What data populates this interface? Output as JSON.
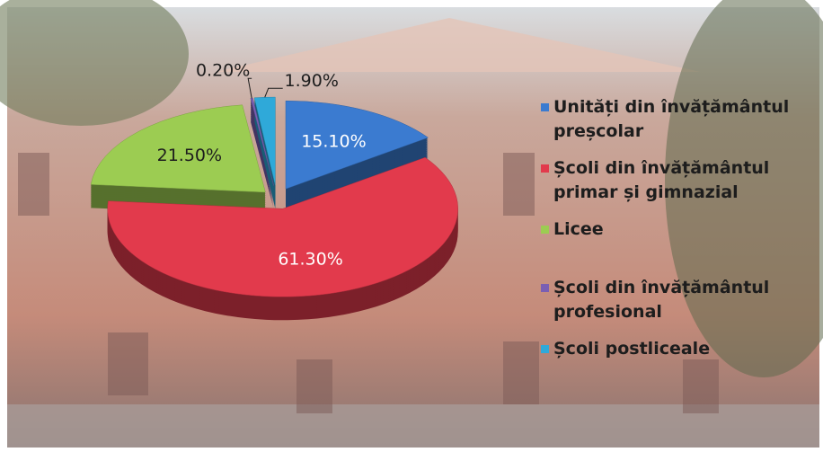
{
  "chart_data": {
    "type": "pie",
    "categories": [
      "Unități din învățământul preșcolar",
      "Școli din învățământul primar și gimnazial",
      "Licee",
      "Școli din învățământul profesional",
      "Școli postliceale"
    ],
    "values": [
      15.1,
      61.3,
      21.5,
      0.2,
      1.9
    ],
    "value_labels": [
      "15.10%",
      "61.30%",
      "21.50%",
      "0.20%",
      "1.90%"
    ],
    "colors": [
      "#3b7bd0",
      "#e23a4c",
      "#9ccc52",
      "#7a5fb3",
      "#2fa9d9"
    ],
    "legend": "right"
  }
}
